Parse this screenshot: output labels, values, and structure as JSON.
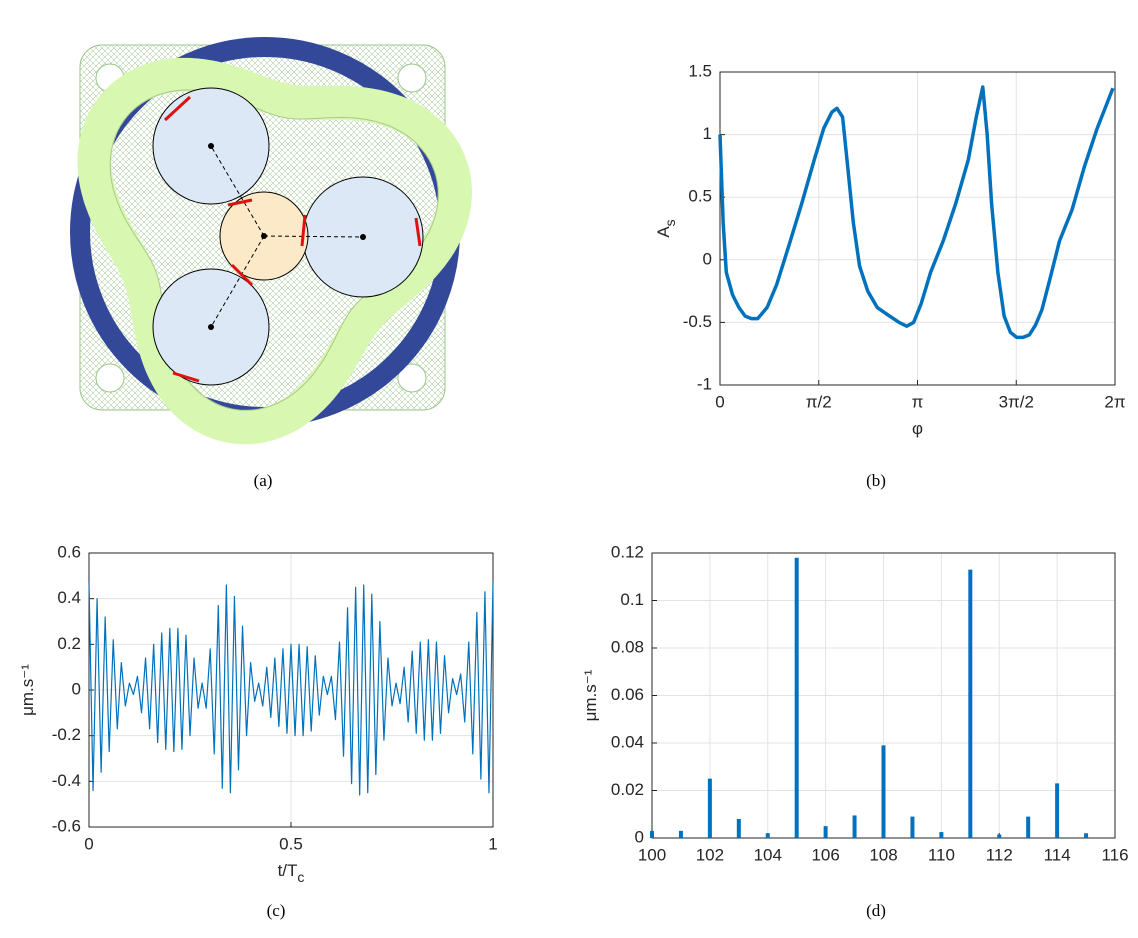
{
  "figure_a": {
    "caption": "(a)"
  },
  "chart_data": [
    {
      "type": "line",
      "caption": "(b)",
      "ylabel": "A",
      "ylabel_sub": "s",
      "xlabel": "φ",
      "color": "#0072bd",
      "grid": true,
      "x": [
        0,
        0.05,
        0.1,
        0.2,
        0.3,
        0.4,
        0.5,
        0.6,
        0.75,
        0.9,
        1.1,
        1.3,
        1.5,
        1.65,
        1.78,
        1.86,
        1.95,
        2.03,
        2.12,
        2.22,
        2.35,
        2.5,
        2.7,
        2.85,
        2.97,
        3.08,
        3.2,
        3.35,
        3.55,
        3.75,
        3.95,
        4.08,
        4.18,
        4.25,
        4.32,
        4.42,
        4.52,
        4.62,
        4.72,
        4.82,
        4.92,
        5.02,
        5.12,
        5.25,
        5.4,
        5.6,
        5.8,
        6.0,
        6.25
      ],
      "values": [
        1.0,
        0.3,
        -0.1,
        -0.28,
        -0.38,
        -0.45,
        -0.47,
        -0.47,
        -0.38,
        -0.2,
        0.12,
        0.45,
        0.8,
        1.05,
        1.18,
        1.21,
        1.14,
        0.75,
        0.3,
        -0.05,
        -0.25,
        -0.38,
        -0.45,
        -0.5,
        -0.53,
        -0.5,
        -0.35,
        -0.1,
        0.15,
        0.45,
        0.8,
        1.15,
        1.38,
        1.0,
        0.45,
        -0.1,
        -0.45,
        -0.58,
        -0.62,
        -0.62,
        -0.6,
        -0.52,
        -0.4,
        -0.15,
        0.15,
        0.4,
        0.75,
        1.05,
        1.37
      ],
      "xlim": [
        0,
        6.2832
      ],
      "xticks": [
        0,
        {
          "value": 1.5708,
          "label": "π/2"
        },
        {
          "value": 3.1416,
          "label": "π"
        },
        {
          "value": 4.7124,
          "label": "3π/2"
        },
        {
          "value": 6.2832,
          "label": "2π"
        }
      ],
      "ylim": [
        -1,
        1.5
      ],
      "yticks": [
        -1,
        -0.5,
        0,
        0.5,
        1,
        1.5
      ]
    },
    {
      "type": "line",
      "caption": "(c)",
      "ylabel": "μm.s⁻¹",
      "xlabel": "t/T",
      "xlabel_sub": "c",
      "color": "#0072bd",
      "grid": true,
      "x": [
        0,
        0.01,
        0.02,
        0.03,
        0.04,
        0.05,
        0.06,
        0.07,
        0.08,
        0.09,
        0.1,
        0.11,
        0.12,
        0.13,
        0.14,
        0.15,
        0.16,
        0.17,
        0.18,
        0.19,
        0.2,
        0.21,
        0.22,
        0.23,
        0.24,
        0.25,
        0.26,
        0.27,
        0.28,
        0.29,
        0.3,
        0.31,
        0.32,
        0.33,
        0.34,
        0.35,
        0.36,
        0.37,
        0.38,
        0.39,
        0.4,
        0.41,
        0.42,
        0.43,
        0.44,
        0.45,
        0.46,
        0.47,
        0.48,
        0.49,
        0.5,
        0.51,
        0.52,
        0.53,
        0.54,
        0.55,
        0.56,
        0.57,
        0.58,
        0.59,
        0.6,
        0.61,
        0.62,
        0.63,
        0.64,
        0.65,
        0.66,
        0.67,
        0.68,
        0.69,
        0.7,
        0.71,
        0.72,
        0.73,
        0.74,
        0.75,
        0.76,
        0.77,
        0.78,
        0.79,
        0.8,
        0.81,
        0.82,
        0.83,
        0.84,
        0.85,
        0.86,
        0.87,
        0.88,
        0.89,
        0.9,
        0.91,
        0.92,
        0.93,
        0.94,
        0.95,
        0.96,
        0.97,
        0.98,
        0.99,
        1
      ],
      "values": [
        0.47,
        -0.44,
        0.4,
        -0.36,
        0.32,
        -0.27,
        0.22,
        -0.17,
        0.12,
        -0.07,
        0.03,
        -0.02,
        0.06,
        -0.1,
        0.14,
        -0.17,
        0.2,
        -0.23,
        0.25,
        -0.26,
        0.27,
        -0.27,
        0.27,
        -0.26,
        0.24,
        -0.2,
        0.14,
        -0.08,
        0.03,
        -0.08,
        0.18,
        -0.28,
        0.37,
        -0.43,
        0.46,
        -0.45,
        0.41,
        -0.35,
        0.28,
        -0.2,
        0.12,
        -0.05,
        0.03,
        -0.07,
        0.1,
        -0.12,
        0.14,
        -0.16,
        0.18,
        -0.19,
        0.2,
        -0.2,
        0.2,
        -0.2,
        0.19,
        -0.18,
        0.15,
        -0.11,
        0.06,
        -0.02,
        0.06,
        -0.13,
        0.21,
        -0.29,
        0.36,
        -0.41,
        0.45,
        -0.46,
        0.46,
        -0.45,
        0.42,
        -0.37,
        0.3,
        -0.22,
        0.14,
        -0.07,
        0.03,
        -0.06,
        0.1,
        -0.14,
        0.17,
        -0.19,
        0.21,
        -0.22,
        0.22,
        -0.22,
        0.21,
        -0.19,
        0.15,
        -0.1,
        0.05,
        -0.02,
        0.07,
        -0.14,
        0.21,
        -0.28,
        0.34,
        -0.39,
        0.43,
        -0.45,
        0.47
      ],
      "xlim": [
        0,
        1
      ],
      "xticks": [
        0,
        0.5,
        1
      ],
      "ylim": [
        -0.6,
        0.6
      ],
      "yticks": [
        -0.6,
        -0.4,
        -0.2,
        0,
        0.2,
        0.4,
        0.6
      ]
    },
    {
      "type": "bar",
      "caption": "(d)",
      "ylabel": "μm.s⁻¹",
      "color": "#0072bd",
      "grid": true,
      "x": [
        100,
        101,
        102,
        103,
        104,
        105,
        106,
        107,
        108,
        109,
        110,
        111,
        112,
        113,
        114,
        115
      ],
      "values": [
        0.003,
        0.003,
        0.025,
        0.008,
        0.002,
        0.118,
        0.005,
        0.0095,
        0.039,
        0.009,
        0.0025,
        0.113,
        0.0015,
        0.009,
        0.023,
        0.002
      ],
      "xlim": [
        100,
        116
      ],
      "xticks": [
        100,
        102,
        104,
        106,
        108,
        110,
        112,
        114,
        116
      ],
      "ylim": [
        0,
        0.12
      ],
      "yticks": [
        0,
        0.02,
        0.04,
        0.06,
        0.08,
        0.1,
        0.12
      ]
    }
  ]
}
